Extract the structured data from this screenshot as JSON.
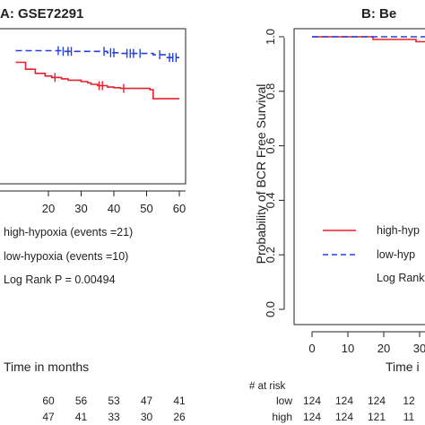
{
  "chart_data": [
    {
      "type": "line",
      "panel": "A",
      "title": "A: GSE72291",
      "xlabel": "Time in months",
      "ylabel": "",
      "xlim": [
        10,
        60
      ],
      "ylim": [
        0,
        1
      ],
      "x_ticks": [
        "20",
        "30",
        "40",
        "50",
        "60"
      ],
      "grid": false,
      "legend_position": "bottom-left",
      "series": [
        {
          "name": "high-hypoxia (events =21)",
          "color": "#e8202a",
          "style": "solid",
          "points": [
            [
              10,
              0.82
            ],
            [
              13,
              0.77
            ],
            [
              16,
              0.74
            ],
            [
              19,
              0.72
            ],
            [
              21,
              0.71
            ],
            [
              24,
              0.7
            ],
            [
              26,
              0.69
            ],
            [
              30,
              0.68
            ],
            [
              32,
              0.67
            ],
            [
              33,
              0.66
            ],
            [
              35,
              0.65
            ],
            [
              38,
              0.64
            ],
            [
              40,
              0.635
            ],
            [
              42,
              0.63
            ],
            [
              51,
              0.62
            ],
            [
              52,
              0.555
            ],
            [
              60,
              0.555
            ]
          ],
          "censor_x": [
            22,
            35.5,
            36.5,
            43
          ]
        },
        {
          "name": "low-hypoxia (events =10)",
          "color": "#2540d8",
          "style": "dashed",
          "points": [
            [
              10,
              0.905
            ],
            [
              22,
              0.905
            ],
            [
              24,
              0.9
            ],
            [
              36,
              0.9
            ],
            [
              38,
              0.89
            ],
            [
              42,
              0.885
            ],
            [
              52,
              0.875
            ],
            [
              56,
              0.855
            ],
            [
              60,
              0.855
            ]
          ],
          "censor_x": [
            23,
            24.5,
            26,
            27,
            37,
            39,
            40,
            44,
            45,
            46,
            48,
            54,
            57,
            58,
            59
          ]
        }
      ],
      "annotation": "Log Rank P = 0.00494",
      "risk_table": {
        "rows": [
          [
            "60",
            "56",
            "53",
            "47",
            "41"
          ],
          [
            "47",
            "41",
            "33",
            "30",
            "26"
          ]
        ]
      }
    },
    {
      "type": "line",
      "panel": "B",
      "title": "B: Be",
      "xlabel": "Time i",
      "ylabel": "Probability of BCR Free Survival",
      "xlim": [
        0,
        40
      ],
      "ylim": [
        0,
        1
      ],
      "x_ticks": [
        "0",
        "10",
        "20",
        "30"
      ],
      "y_ticks": [
        "0.0",
        "0.2",
        "0.4",
        "0.6",
        "0.8",
        "1.0"
      ],
      "grid": false,
      "legend_position": "bottom-left",
      "series": [
        {
          "name": "high-hyp",
          "color": "#e8202a",
          "style": "solid",
          "points": [
            [
              0,
              1.0
            ],
            [
              16,
              1.0
            ],
            [
              17,
              0.99
            ],
            [
              28,
              0.99
            ],
            [
              29,
              0.982
            ],
            [
              40,
              0.982
            ]
          ]
        },
        {
          "name": "low-hyp",
          "color": "#2540d8",
          "style": "dashed",
          "points": [
            [
              0,
              1.0
            ],
            [
              40,
              1.0
            ]
          ]
        }
      ],
      "annotation": "Log Rank",
      "risk_table": {
        "header": "# at risk",
        "rows": [
          {
            "label": "low",
            "values": [
              "124",
              "124",
              "124",
              "12"
            ]
          },
          {
            "label": "high",
            "values": [
              "124",
              "124",
              "121",
              "11"
            ]
          }
        ]
      }
    }
  ]
}
